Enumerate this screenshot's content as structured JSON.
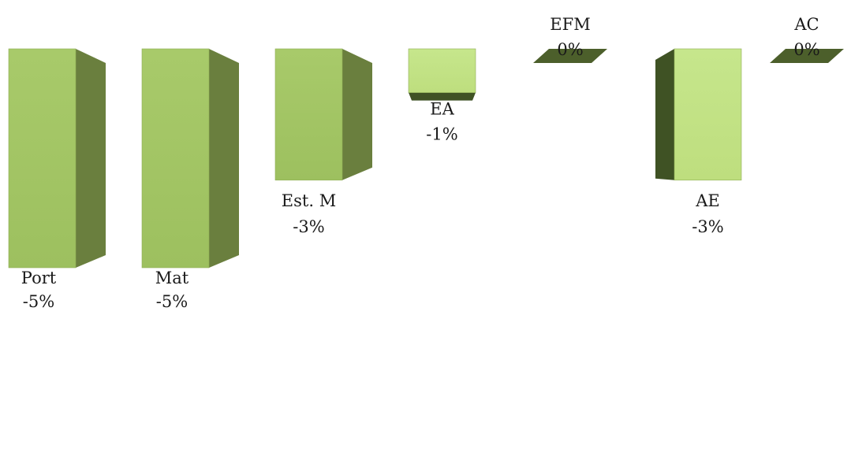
{
  "chart_data": {
    "type": "bar",
    "style": "3d-waterfall",
    "categories": [
      "Port",
      "Mat",
      "Est. M",
      "EA",
      "EFM",
      "AE",
      "AC"
    ],
    "values": [
      -5,
      -5,
      -3,
      -1,
      0,
      -3,
      0
    ],
    "value_labels": [
      "-5%",
      "-5%",
      "-3%",
      "-1%",
      "0%",
      "-3%",
      "0%"
    ],
    "unit": "%",
    "title": "",
    "xlabel": "",
    "ylabel": "",
    "grid": false,
    "legend": "none",
    "colors": {
      "front": "#a4c667",
      "front_light": "#c3e387",
      "side_dark": "#6a7f3e",
      "side_darkest": "#3f5224",
      "top_zero": "#4c5f2b",
      "text": "#1a1a1a"
    }
  }
}
